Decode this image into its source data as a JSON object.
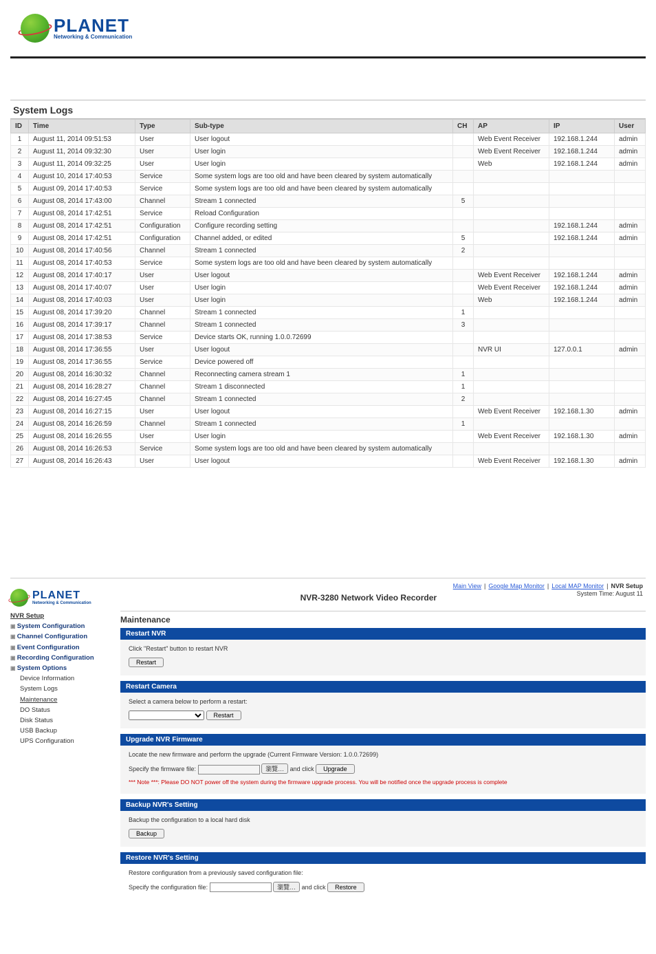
{
  "brand": {
    "name": "PLANET",
    "tagline": "Networking & Communication"
  },
  "logs": {
    "title": "System Logs",
    "columns": [
      "ID",
      "Time",
      "Type",
      "Sub-type",
      "CH",
      "AP",
      "IP",
      "User"
    ],
    "rows": [
      {
        "id": "1",
        "time": "August 11, 2014 09:51:53",
        "type": "User",
        "sub": "User logout",
        "ch": "",
        "ap": "Web Event Receiver",
        "ip": "192.168.1.244",
        "user": "admin"
      },
      {
        "id": "2",
        "time": "August 11, 2014 09:32:30",
        "type": "User",
        "sub": "User login",
        "ch": "",
        "ap": "Web Event Receiver",
        "ip": "192.168.1.244",
        "user": "admin"
      },
      {
        "id": "3",
        "time": "August 11, 2014 09:32:25",
        "type": "User",
        "sub": "User login",
        "ch": "",
        "ap": "Web",
        "ip": "192.168.1.244",
        "user": "admin"
      },
      {
        "id": "4",
        "time": "August 10, 2014 17:40:53",
        "type": "Service",
        "sub": "Some system logs are too old and have been cleared by system automatically",
        "ch": "",
        "ap": "",
        "ip": "",
        "user": ""
      },
      {
        "id": "5",
        "time": "August 09, 2014 17:40:53",
        "type": "Service",
        "sub": "Some system logs are too old and have been cleared by system automatically",
        "ch": "",
        "ap": "",
        "ip": "",
        "user": ""
      },
      {
        "id": "6",
        "time": "August 08, 2014 17:43:00",
        "type": "Channel",
        "sub": "Stream 1 connected",
        "ch": "5",
        "ap": "",
        "ip": "",
        "user": ""
      },
      {
        "id": "7",
        "time": "August 08, 2014 17:42:51",
        "type": "Service",
        "sub": "Reload Configuration",
        "ch": "",
        "ap": "",
        "ip": "",
        "user": ""
      },
      {
        "id": "8",
        "time": "August 08, 2014 17:42:51",
        "type": "Configuration",
        "sub": "Configure recording setting",
        "ch": "",
        "ap": "",
        "ip": "192.168.1.244",
        "user": "admin"
      },
      {
        "id": "9",
        "time": "August 08, 2014 17:42:51",
        "type": "Configuration",
        "sub": "Channel added, or edited",
        "ch": "5",
        "ap": "",
        "ip": "192.168.1.244",
        "user": "admin"
      },
      {
        "id": "10",
        "time": "August 08, 2014 17:40:56",
        "type": "Channel",
        "sub": "Stream 1 connected",
        "ch": "2",
        "ap": "",
        "ip": "",
        "user": ""
      },
      {
        "id": "11",
        "time": "August 08, 2014 17:40:53",
        "type": "Service",
        "sub": "Some system logs are too old and have been cleared by system automatically",
        "ch": "",
        "ap": "",
        "ip": "",
        "user": ""
      },
      {
        "id": "12",
        "time": "August 08, 2014 17:40:17",
        "type": "User",
        "sub": "User logout",
        "ch": "",
        "ap": "Web Event Receiver",
        "ip": "192.168.1.244",
        "user": "admin"
      },
      {
        "id": "13",
        "time": "August 08, 2014 17:40:07",
        "type": "User",
        "sub": "User login",
        "ch": "",
        "ap": "Web Event Receiver",
        "ip": "192.168.1.244",
        "user": "admin"
      },
      {
        "id": "14",
        "time": "August 08, 2014 17:40:03",
        "type": "User",
        "sub": "User login",
        "ch": "",
        "ap": "Web",
        "ip": "192.168.1.244",
        "user": "admin"
      },
      {
        "id": "15",
        "time": "August 08, 2014 17:39:20",
        "type": "Channel",
        "sub": "Stream 1 connected",
        "ch": "1",
        "ap": "",
        "ip": "",
        "user": ""
      },
      {
        "id": "16",
        "time": "August 08, 2014 17:39:17",
        "type": "Channel",
        "sub": "Stream 1 connected",
        "ch": "3",
        "ap": "",
        "ip": "",
        "user": ""
      },
      {
        "id": "17",
        "time": "August 08, 2014 17:38:53",
        "type": "Service",
        "sub": "Device starts OK, running 1.0.0.72699",
        "ch": "",
        "ap": "",
        "ip": "",
        "user": ""
      },
      {
        "id": "18",
        "time": "August 08, 2014 17:36:55",
        "type": "User",
        "sub": "User logout",
        "ch": "",
        "ap": "NVR UI",
        "ip": "127.0.0.1",
        "user": "admin"
      },
      {
        "id": "19",
        "time": "August 08, 2014 17:36:55",
        "type": "Service",
        "sub": "Device powered off",
        "ch": "",
        "ap": "",
        "ip": "",
        "user": ""
      },
      {
        "id": "20",
        "time": "August 08, 2014 16:30:32",
        "type": "Channel",
        "sub": "Reconnecting camera stream 1",
        "ch": "1",
        "ap": "",
        "ip": "",
        "user": ""
      },
      {
        "id": "21",
        "time": "August 08, 2014 16:28:27",
        "type": "Channel",
        "sub": "Stream 1 disconnected",
        "ch": "1",
        "ap": "",
        "ip": "",
        "user": ""
      },
      {
        "id": "22",
        "time": "August 08, 2014 16:27:45",
        "type": "Channel",
        "sub": "Stream 1 connected",
        "ch": "2",
        "ap": "",
        "ip": "",
        "user": ""
      },
      {
        "id": "23",
        "time": "August 08, 2014 16:27:15",
        "type": "User",
        "sub": "User logout",
        "ch": "",
        "ap": "Web Event Receiver",
        "ip": "192.168.1.30",
        "user": "admin"
      },
      {
        "id": "24",
        "time": "August 08, 2014 16:26:59",
        "type": "Channel",
        "sub": "Stream 1 connected",
        "ch": "1",
        "ap": "",
        "ip": "",
        "user": ""
      },
      {
        "id": "25",
        "time": "August 08, 2014 16:26:55",
        "type": "User",
        "sub": "User login",
        "ch": "",
        "ap": "Web Event Receiver",
        "ip": "192.168.1.30",
        "user": "admin"
      },
      {
        "id": "26",
        "time": "August 08, 2014 16:26:53",
        "type": "Service",
        "sub": "Some system logs are too old and have been cleared by system automatically",
        "ch": "",
        "ap": "",
        "ip": "",
        "user": ""
      },
      {
        "id": "27",
        "time": "August 08, 2014 16:26:43",
        "type": "User",
        "sub": "User logout",
        "ch": "",
        "ap": "Web Event Receiver",
        "ip": "192.168.1.30",
        "user": "admin"
      }
    ]
  },
  "maint": {
    "topnav": {
      "main": "Main View",
      "google": "Google Map Monitor",
      "local": "Local MAP Monitor",
      "setup": "NVR Setup"
    },
    "systime": "System Time: August 11",
    "product_title": "NVR-3280 Network Video Recorder",
    "nav": {
      "root": "NVR Setup",
      "sections": [
        {
          "label": "System Configuration"
        },
        {
          "label": "Channel Configuration"
        },
        {
          "label": "Event Configuration"
        },
        {
          "label": "Recording Configuration"
        },
        {
          "label": "System Options",
          "children": [
            "Device Information",
            "System Logs",
            "Maintenance",
            "DO Status",
            "Disk Status",
            "USB Backup",
            "UPS Configuration"
          ],
          "active": "Maintenance"
        }
      ]
    },
    "heading": "Maintenance",
    "panels": {
      "restart_nvr": {
        "title": "Restart NVR",
        "text": "Click \"Restart\" button to restart NVR",
        "btn": "Restart"
      },
      "restart_cam": {
        "title": "Restart Camera",
        "text": "Select a camera below to perform a restart:",
        "btn": "Restart"
      },
      "upgrade": {
        "title": "Upgrade NVR Firmware",
        "text": "Locate the new firmware and perform the upgrade (Current Firmware Version: 1.0.0.72699)",
        "label": "Specify the firmware file:",
        "browse": "瀏覽…",
        "andclick": "and click",
        "btn": "Upgrade",
        "note": "*** Note ***: Please DO NOT power off the system during the firmware upgrade process. You will be notified once the upgrade process is complete"
      },
      "backup": {
        "title": "Backup NVR's Setting",
        "text": "Backup the configuration to a local hard disk",
        "btn": "Backup"
      },
      "restore": {
        "title": "Restore NVR's Setting",
        "text": "Restore configuration from a previously saved configuration file:",
        "label": "Specify the configuration file:",
        "browse": "瀏覽…",
        "andclick": "and click",
        "btn": "Restore"
      }
    }
  }
}
